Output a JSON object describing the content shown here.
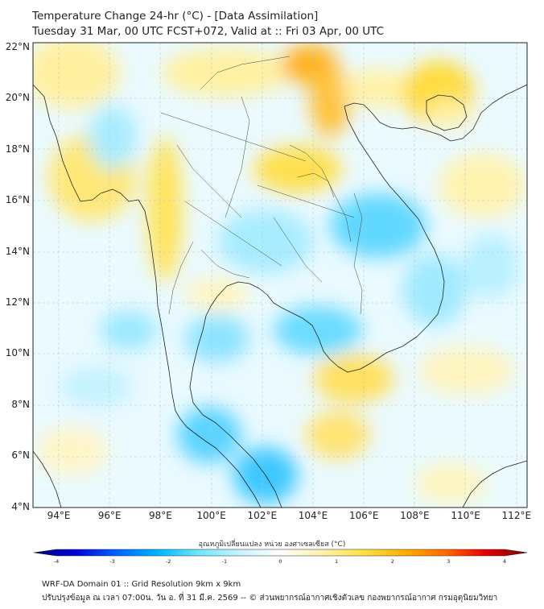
{
  "title": {
    "line1": "Temperature Change 24-hr (°C) - [Data Assimilation]",
    "line2": "Tuesday 31 Mar, 00 UTC FCST+072, Valid at :: Fri 03 Apr, 00 UTC"
  },
  "axes": {
    "lat_labels": [
      "22°N",
      "20°N",
      "18°N",
      "16°N",
      "14°N",
      "12°N",
      "10°N",
      "8°N",
      "6°N",
      "4°N"
    ],
    "lon_labels": [
      "94°E",
      "96°E",
      "98°E",
      "100°E",
      "102°E",
      "104°E",
      "106°E",
      "108°E",
      "110°E",
      "112°E"
    ],
    "lat_range": [
      4,
      22.2
    ],
    "lon_range": [
      93,
      112.4
    ]
  },
  "colorbar": {
    "title": "อุณหภูมิเปลี่ยนแปลง หน่วย องศาเซลเซียส (°C)",
    "ticks": [
      "-4",
      "-3",
      "-2",
      "-1",
      "0",
      "1",
      "2",
      "3",
      "4"
    ],
    "range": [
      -4,
      4
    ],
    "colors": [
      "#00007a",
      "#0000d8",
      "#0060ff",
      "#00b4ff",
      "#6fe6ff",
      "#c4f4ff",
      "#ffffff",
      "#fff3a8",
      "#ffe04a",
      "#ffb000",
      "#ff6a00",
      "#e80000",
      "#7a0000"
    ]
  },
  "footer": {
    "line1": "WRF-DA Domain 01 :: Grid Resolution 9km x 9km",
    "line2": "ปรับปรุงข้อมูล ณ เวลา 07:00น. วัน อ. ที่ 31 มี.ค. 2569 -- © ส่วนพยากรณ์อากาศเชิงตัวเลข กองพยากรณ์อากาศ กรมอุตุนิยมวิทยา"
  }
}
